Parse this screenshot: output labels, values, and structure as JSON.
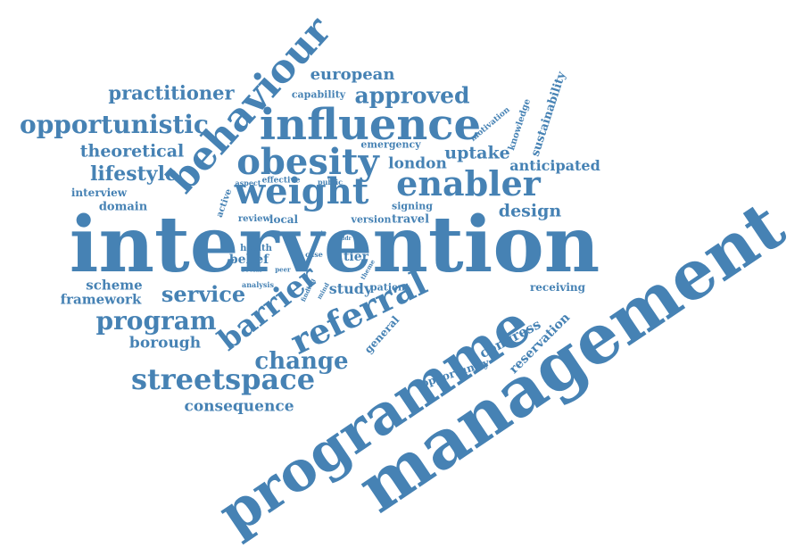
{
  "color": "#4682b4",
  "words": [
    "intervention",
    "management",
    "programme",
    "influence",
    "obesity",
    "weight",
    "behaviour",
    "enabler",
    "referral",
    "barrier",
    "streetspace",
    "program",
    "change",
    "service",
    "opportunistic",
    "approved",
    "practitioner",
    "lifestyle",
    "theoretical",
    "european",
    "uptake",
    "london",
    "anticipated",
    "design",
    "sustainability",
    "knowledge",
    "motivation",
    "emergency",
    "capability",
    "consequence",
    "borough",
    "framework",
    "scheme",
    "congress",
    "reservation",
    "opportunity",
    "general",
    "receiving",
    "study",
    "patient",
    "tier",
    "belief",
    "interview",
    "domain",
    "signing",
    "travel",
    "version",
    "local",
    "review",
    "effective",
    "public",
    "aspect",
    "active",
    "health",
    "social",
    "peer",
    "analysis",
    "case",
    "finding",
    "mind",
    "route",
    "theme",
    "addr"
  ]
}
